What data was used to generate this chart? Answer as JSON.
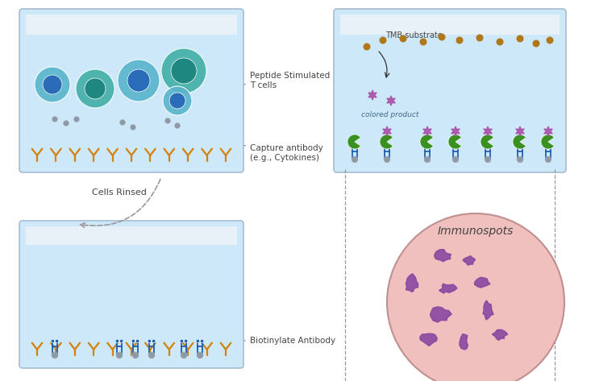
{
  "bg_color": "#ffffff",
  "well_fill": "#ddeeff",
  "well_liquid": "#cde8f8",
  "well_border": "#a8bdd0",
  "well_top": "#e8f0f8",
  "orange_ab": "#d4820a",
  "blue_cell_outer": "#5ab5cc",
  "blue_cell_inner": "#2a6cb8",
  "teal_cell_outer": "#45b0a8",
  "teal_cell_inner": "#1e8880",
  "gray_dot": "#8a9aaa",
  "blue_ab": "#2060b0",
  "green_enzyme": "#3a9020",
  "purple_star": "#aa50aa",
  "brown_tmb": "#b07818",
  "pink_bg": "#f0c0be",
  "pink_spot": "#8844a0",
  "pink_border": "#c09090",
  "text_color": "#444444",
  "label_color": "#555555",
  "arrow_color": "#888888",
  "dashed_color": "#999999",
  "labels": {
    "peptide": "Peptide Stimulated\nT cells",
    "capture": "Capture antibody\n(e.g., Cytokines)",
    "cells_rinsed": "Cells Rinsed",
    "biotin": "Biotinylate Antibody",
    "tmb": "TMB substrate",
    "colored": "colored product",
    "immunospots": "Immunospots"
  }
}
